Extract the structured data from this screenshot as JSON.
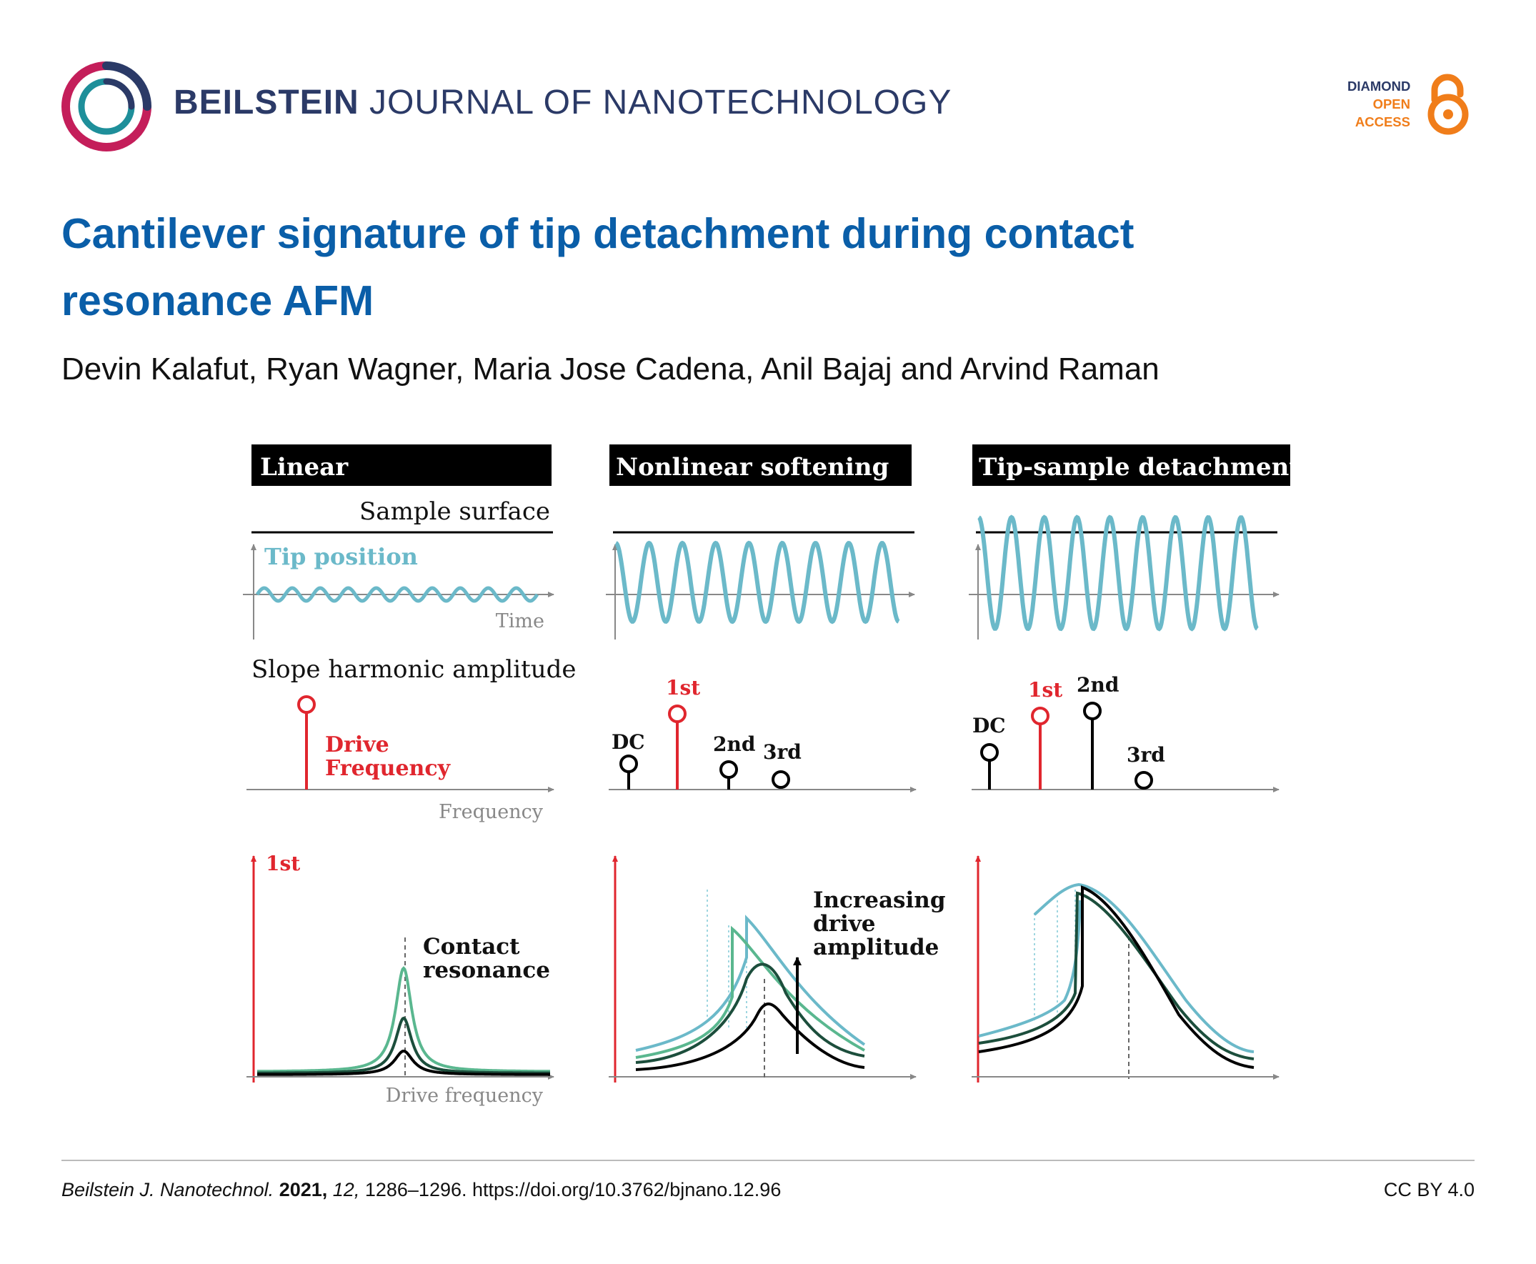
{
  "journal": {
    "name_bold": "BEILSTEIN",
    "name_rest": " JOURNAL OF NANOTECHNOLOGY",
    "badge": [
      "DIAMOND",
      "OPEN",
      "ACCESS"
    ]
  },
  "article": {
    "title_line1": "Cantilever signature of tip detachment during contact",
    "title_line2": "resonance AFM",
    "authors": "Devin Kalafut, Ryan Wagner, Maria Jose Cadena, Anil Bajaj and Arvind Raman"
  },
  "figure": {
    "panels": [
      {
        "header": "Linear"
      },
      {
        "header": "Nonlinear softening"
      },
      {
        "header": "Tip-sample detachment"
      }
    ],
    "labels": {
      "sample_surface": "Sample surface",
      "tip_position": "Tip position",
      "time": "Time",
      "slope_harmonic": "Slope harmonic amplitude",
      "drive_line1": "Drive",
      "drive_line2": "Frequency",
      "frequency": "Frequency",
      "dc": "DC",
      "first": "1st",
      "second": "2nd",
      "third": "3rd",
      "first_axis": "1st",
      "contact_line1": "Contact",
      "contact_line2": "resonance",
      "drive_frequency": "Drive frequency",
      "increasing_line1": "Increasing",
      "increasing_line2": "drive",
      "increasing_line3": "amplitude"
    },
    "colors": {
      "tip": "#6bb9c9",
      "red": "#e0262e",
      "mid_green": "#2e8a6a",
      "dark_green": "#1c4e3c",
      "light_green": "#5ab78f"
    }
  },
  "footer": {
    "journal_abbrev": "Beilstein J. Nanotechnol.",
    "year": "2021,",
    "volume": "12,",
    "pages_doi": "1286–1296. https://doi.org/10.3762/bjnano.12.96",
    "license": "CC BY 4.0"
  }
}
